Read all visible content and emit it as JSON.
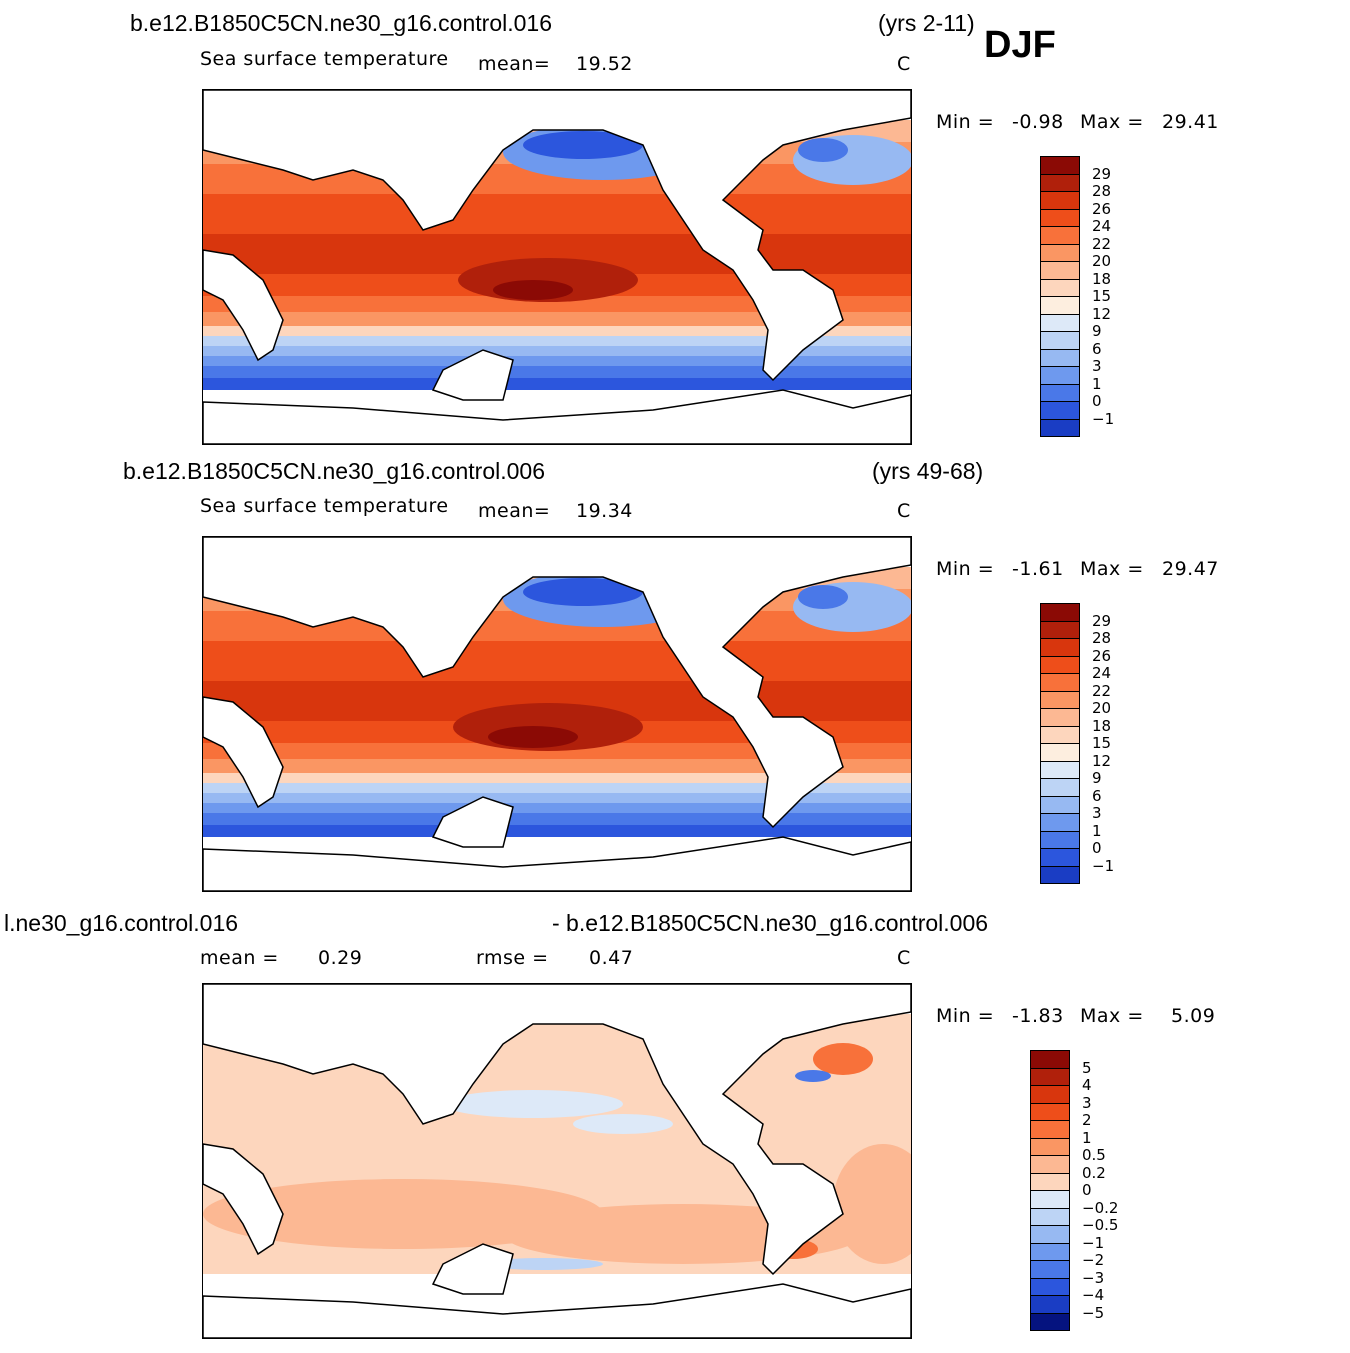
{
  "season": "DJF",
  "panels": [
    {
      "case": "b.e12.B1850C5CN.ne30_g16.control.016",
      "years": "(yrs 2-11)",
      "variable": "Sea surface temperature",
      "mean_label": "mean=",
      "mean_value": "19.52",
      "units": "C",
      "min_label": "Min =",
      "min_value": "-0.98",
      "max_label": "Max =",
      "max_value": "29.41",
      "colorbar": [
        "29",
        "28",
        "26",
        "24",
        "22",
        "20",
        "18",
        "15",
        "12",
        "9",
        "6",
        "3",
        "1",
        "0",
        "-1"
      ],
      "colors": [
        "#8b0a05",
        "#b0200b",
        "#d8360d",
        "#ee4e1a",
        "#f8713a",
        "#fa9663",
        "#fcb893",
        "#fdd6bd",
        "#fdeedf",
        "#dde9f8",
        "#bdd4f5",
        "#97b9f2",
        "#6e99ee",
        "#4a78e8",
        "#2c56dd",
        "#1a3dc4",
        "#0e28a8",
        "#05137f"
      ]
    },
    {
      "case": "b.e12.B1850C5CN.ne30_g16.control.006",
      "years": "(yrs 49-68)",
      "variable": "Sea surface temperature",
      "mean_label": "mean=",
      "mean_value": "19.34",
      "units": "C",
      "min_label": "Min =",
      "min_value": "-1.61",
      "max_label": "Max =",
      "max_value": "29.47",
      "colorbar": [
        "29",
        "28",
        "26",
        "24",
        "22",
        "20",
        "18",
        "15",
        "12",
        "9",
        "6",
        "3",
        "1",
        "0",
        "-1"
      ]
    },
    {
      "case_left": "l.ne30_g16.control.016",
      "case_right": "- b.e12.B1850C5CN.ne30_g16.control.006",
      "mean_label": "mean =",
      "mean_value": "0.29",
      "rmse_label": "rmse =",
      "rmse_value": "0.47",
      "units": "C",
      "min_label": "Min =",
      "min_value": "-1.83",
      "max_label": "Max =",
      "max_value": "5.09",
      "colorbar": [
        "5",
        "4",
        "3",
        "2",
        "1",
        "0.5",
        "0.2",
        "0",
        "-0.2",
        "-0.5",
        "-1",
        "-2",
        "-3",
        "-4",
        "-5"
      ]
    }
  ]
}
